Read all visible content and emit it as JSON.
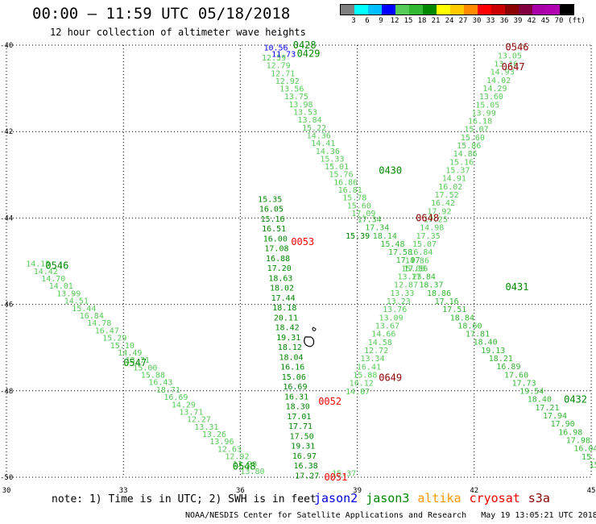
{
  "title": "00:00 – 11:59 UTC 05/18/2018",
  "subtitle": "12 hour collection of altimeter wave heights",
  "legend": {
    "unit": "(ft)",
    "colors": [
      "#808080",
      "#00ffff",
      "#00bfff",
      "#0000ff",
      "#55cc55",
      "#33b833",
      "#008800",
      "#ffff00",
      "#ffcc00",
      "#ff8c00",
      "#ff0000",
      "#cc0000",
      "#8b0000",
      "#800040",
      "#aa00aa",
      "#b000b0",
      "#000000"
    ],
    "labels": [
      "3",
      "6",
      "9",
      "12",
      "15",
      "18",
      "21",
      "24",
      "27",
      "30",
      "33",
      "36",
      "39",
      "42",
      "45",
      "70"
    ]
  },
  "map": {
    "lon_range": [
      30,
      45
    ],
    "lat_range": [
      -50,
      -40
    ],
    "x_ticks": [
      "30",
      "33",
      "36",
      "39",
      "42",
      "45"
    ],
    "y_ticks": [
      "-40",
      "-42",
      "-44",
      "-46",
      "-48",
      "-50"
    ],
    "grid": "dotted"
  },
  "tracks": [
    {
      "name": "t1",
      "color": "#55cc55",
      "lon0": 30.5,
      "lat0": -45.05,
      "lon1": 36.0,
      "lat1": -49.85,
      "values": [
        "14.15",
        "14.42",
        "14.70",
        "14.01",
        "13.99",
        "14.51",
        "15.44",
        "16.84",
        "14.78",
        "16.47",
        "15.29",
        "15.10",
        "14.49",
        "13.71",
        "15.00",
        "15.88",
        "16.43",
        "18.71",
        "16.69",
        "14.29",
        "13.71",
        "12.27",
        "13.31",
        "13.26",
        "13.96",
        "12.63",
        "12.92",
        "13.20",
        "13.80"
      ]
    },
    {
      "name": "t2",
      "color": "#55cc55",
      "lon0": 36.55,
      "lat0": -40.28,
      "lon1": 38.85,
      "lat1": -43.88,
      "values": [
        "12.59",
        "12.79",
        "12.71",
        "12.92",
        "13.56",
        "13.75",
        "13.98",
        "13.53",
        "13.84",
        "15.22",
        "14.36",
        "14.41",
        "14.36",
        "15.33",
        "15.01",
        "15.76",
        "16.86",
        "16.81",
        "15.78",
        "15.60",
        "17.09"
      ]
    },
    {
      "name": "t3",
      "color": "#33b833",
      "lon0": 39.0,
      "lat0": -44.02,
      "lon1": 44.95,
      "lat1": -49.7,
      "values": [
        "17.34",
        "17.34",
        "18.14",
        "15.48",
        "17.58",
        "17.97",
        "17.56",
        "17.84",
        "18.37",
        "18.86",
        "17.16",
        "17.51",
        "18.84",
        "18.60",
        "17.81",
        "18.40",
        "19.13",
        "18.21",
        "16.89",
        "17.60",
        "17.73",
        "19.54",
        "18.40",
        "17.21",
        "17.94",
        "17.90",
        "16.98",
        "17.98",
        "16.04",
        "15.53",
        "15.29"
      ]
    },
    {
      "name": "t4",
      "color": "#55cc55",
      "lon0": 42.6,
      "lat0": -40.23,
      "lon1": 38.7,
      "lat1": -48.0,
      "values": [
        "13.05",
        "13.16",
        "14.93",
        "14.02",
        "14.29",
        "13.60",
        "15.05",
        "13.99",
        "16.18",
        "15.07",
        "15.60",
        "15.86",
        "14.86",
        "15.16",
        "15.37",
        "14.91",
        "16.02",
        "17.52",
        "16.42",
        "17.92",
        "17.25",
        "14.98",
        "17.35",
        "15.07",
        "16.84",
        "14.86",
        "15.05",
        "13.25",
        "12.87",
        "13.33",
        "13.23",
        "13.76",
        "13.09",
        "13.67",
        "14.66",
        "14.58",
        "12.72",
        "13.34",
        "16.41",
        "15.88",
        "16.12",
        "14.87"
      ]
    },
    {
      "name": "t5",
      "color": "#008800",
      "lon0": 36.45,
      "lat0": -43.55,
      "lon1": 37.4,
      "lat1": -49.95,
      "values": [
        "15.35",
        "16.05",
        "15.16",
        "16.51",
        "16.00",
        "17.08",
        "16.88",
        "17.20",
        "18.63",
        "18.02",
        "17.44",
        "18.18",
        "20.11",
        "18.42",
        "19.31",
        "18.12",
        "18.04",
        "16.16",
        "15.06",
        "16.69",
        "16.31",
        "18.30",
        "17.01",
        "17.71",
        "17.50",
        "19.31",
        "16.97",
        "16.38",
        "17.27"
      ]
    }
  ],
  "extra_values": [
    {
      "text": "10.56",
      "color": "#0000ff",
      "lon": 36.6,
      "lat": -40.05
    },
    {
      "text": "11.73",
      "color": "#0000ff",
      "lon": 36.8,
      "lat": -40.2
    },
    {
      "text": "15.39",
      "color": "#008800",
      "lon": 38.7,
      "lat": -44.4
    },
    {
      "text": "15.37",
      "color": "#55cc55",
      "lon": 38.35,
      "lat": -49.9
    }
  ],
  "time_labels": [
    {
      "text": "0428",
      "color": "#008800",
      "lon": 37.35,
      "lat": -40.0
    },
    {
      "text": "0429",
      "color": "#008800",
      "lon": 37.45,
      "lat": -40.2
    },
    {
      "text": "0546",
      "color": "#008800",
      "lon": 31.0,
      "lat": -45.1
    },
    {
      "text": "0547",
      "color": "#008800",
      "lon": 33.0,
      "lat": -47.35
    },
    {
      "text": "0548",
      "color": "#008800",
      "lon": 35.8,
      "lat": -49.75
    },
    {
      "text": "0430",
      "color": "#008800",
      "lon": 39.55,
      "lat": -42.9
    },
    {
      "text": "0431",
      "color": "#008800",
      "lon": 42.8,
      "lat": -45.6
    },
    {
      "text": "0432",
      "color": "#008800",
      "lon": 44.3,
      "lat": -48.2
    },
    {
      "text": "0053",
      "color": "#ff0000",
      "lon": 37.3,
      "lat": -44.55
    },
    {
      "text": "0052",
      "color": "#ff0000",
      "lon": 38.0,
      "lat": -48.25
    },
    {
      "text": "0051",
      "color": "#ff0000",
      "lon": 38.15,
      "lat": -50.0
    },
    {
      "text": "0546",
      "color": "#8b0000",
      "lon": 42.8,
      "lat": -40.05
    },
    {
      "text": "0647",
      "color": "#8b0000",
      "lon": 42.7,
      "lat": -40.5
    },
    {
      "text": "0648",
      "color": "#8b0000",
      "lon": 40.5,
      "lat": -44.0
    },
    {
      "text": "0649",
      "color": "#8b0000",
      "lon": 39.55,
      "lat": -47.7
    }
  ],
  "note": "note: 1) Time is in UTC; 2) SWH is in feet",
  "satellites": [
    {
      "name": "jason2",
      "color": "#0000dd"
    },
    {
      "name": "jason3",
      "color": "#008800"
    },
    {
      "name": "altika",
      "color": "#ff9900"
    },
    {
      "name": "cryosat",
      "color": "#ee0000"
    },
    {
      "name": "s3a",
      "color": "#8b0000"
    }
  ],
  "credit": "NOAA/NESDIS Center for Satellite Applications and Research   May 19 13:05:21 UTC 2018"
}
